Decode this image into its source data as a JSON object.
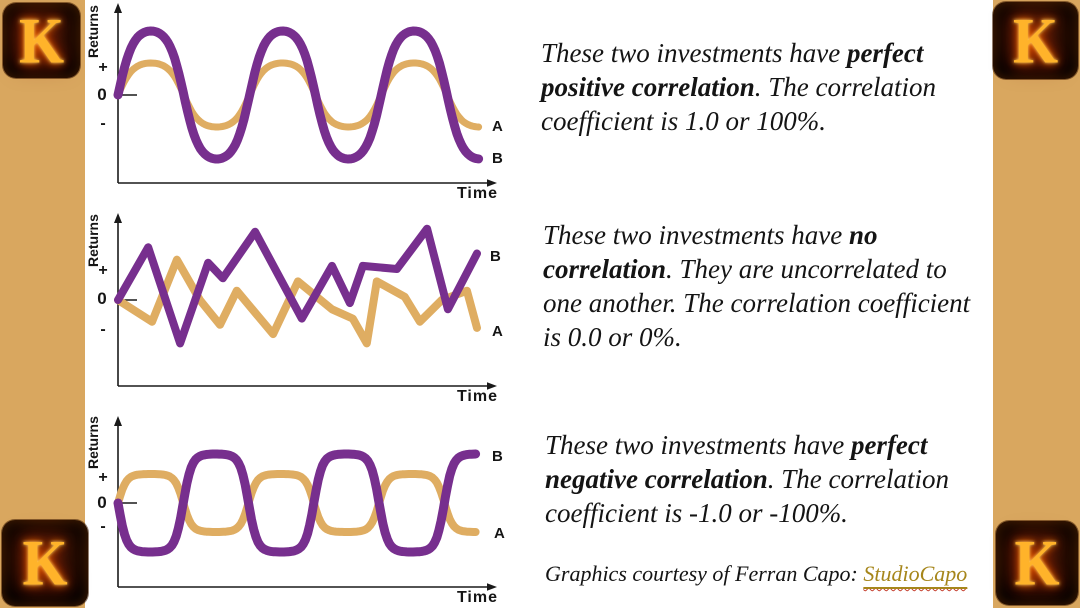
{
  "slide": {
    "background_color": "#FFFFFF",
    "border_strip_color": "#D9A75F"
  },
  "logo": {
    "letter": "K",
    "description": "flaming letter K on black rounded app-icon tile",
    "flame_color": "#FFB32A",
    "tile_color": "#0B0502"
  },
  "charts": [
    {
      "id": "perfect-positive-correlation",
      "ylabel": "Returns",
      "xlabel": "Time",
      "yticks": [
        "+",
        "0",
        "-"
      ],
      "chart_data": {
        "type": "line",
        "title": "perfect positive correlation",
        "xlabel": "Time",
        "ylabel": "Returns",
        "y_ticks": [
          "+",
          "0",
          "-"
        ],
        "grid": false,
        "relationship": "two in-phase smooth waves, correlation +1.0",
        "series": [
          {
            "name": "B",
            "color": "#772F8E",
            "shape": "wave",
            "cycles": 2.75,
            "amplitude": 1.0,
            "starts": "up",
            "flatten": 1.25
          },
          {
            "name": "A",
            "color": "#DFAD62",
            "shape": "wave",
            "cycles": 2.75,
            "amplitude": 0.5,
            "starts": "up",
            "flatten": 1.25
          }
        ]
      }
    },
    {
      "id": "no-correlation",
      "ylabel": "Returns",
      "xlabel": "Time",
      "yticks": [
        "+",
        "0",
        "-"
      ],
      "chart_data": {
        "type": "line",
        "title": "no correlation",
        "xlabel": "Time",
        "ylabel": "Returns",
        "y_ticks": [
          "+",
          "0",
          "-"
        ],
        "grid": false,
        "relationship": "two random zigzag series, correlation 0.0",
        "series": [
          {
            "name": "B",
            "color": "#772F8E",
            "shape": "zigzag",
            "x_frac": [
              0,
              0.084,
              0.173,
              0.251,
              0.292,
              0.382,
              0.512,
              0.596,
              0.646,
              0.682,
              0.777,
              0.861,
              0.919,
              1.0
            ],
            "values": [
              0,
              0.85,
              -0.7,
              0.6,
              0.35,
              1.1,
              -0.3,
              0.55,
              -0.05,
              0.55,
              0.5,
              1.15,
              -0.15,
              0.75
            ]
          },
          {
            "name": "A",
            "color": "#DFAD62",
            "shape": "zigzag",
            "x_frac": [
              0,
              0.095,
              0.164,
              0.228,
              0.256,
              0.284,
              0.331,
              0.432,
              0.501,
              0.596,
              0.654,
              0.693,
              0.721,
              0.799,
              0.841,
              0.902,
              0.972,
              1.0
            ],
            "values": [
              0,
              -0.35,
              0.65,
              0,
              -0.2,
              -0.4,
              0.15,
              -0.55,
              0.3,
              -0.15,
              -0.3,
              -0.7,
              0.3,
              0.05,
              -0.35,
              0,
              0.15,
              -0.45
            ]
          }
        ]
      }
    },
    {
      "id": "perfect-negative-correlation",
      "ylabel": "Returns",
      "xlabel": "Time",
      "yticks": [
        "+",
        "0",
        "-"
      ],
      "chart_data": {
        "type": "line",
        "title": "perfect negative correlation",
        "xlabel": "Time",
        "ylabel": "Returns",
        "y_ticks": [
          "+",
          "0",
          "-"
        ],
        "grid": false,
        "relationship": "two anti-phase flattened waves, correlation -1.0",
        "series": [
          {
            "name": "B",
            "color": "#772F8E",
            "shape": "wave",
            "cycles": 2.75,
            "amplitude": 1.0,
            "starts": "down",
            "flatten": 2.4
          },
          {
            "name": "A",
            "color": "#DFAD62",
            "shape": "wave",
            "cycles": 2.75,
            "amplitude": 0.6,
            "starts": "up",
            "flatten": 2.4
          }
        ]
      }
    }
  ],
  "captions": [
    {
      "segments": [
        {
          "text": "These two investments have ",
          "bold": false
        },
        {
          "text": "perfect positive correlation",
          "bold": true
        },
        {
          "text": ". The correlation coefficient is 1.0 or 100%.",
          "bold": false
        }
      ]
    },
    {
      "segments": [
        {
          "text": "These two investments have ",
          "bold": false
        },
        {
          "text": "no correlation",
          "bold": true
        },
        {
          "text": ". They are uncorrelated to one another. The correlation coefficient is 0.0 or 0%.",
          "bold": false
        }
      ]
    },
    {
      "segments": [
        {
          "text": "These two investments have ",
          "bold": false
        },
        {
          "text": "perfect negative correlation",
          "bold": true
        },
        {
          "text": ". The correlation coefficient is -1.0 or -100%.",
          "bold": false
        }
      ]
    }
  ],
  "credit": {
    "prefix": "Graphics courtesy of Ferran Capo: ",
    "link_label": "StudioCapo",
    "link_color": "#A6861B",
    "spellcheck_underline_color": "#C43A2A"
  }
}
